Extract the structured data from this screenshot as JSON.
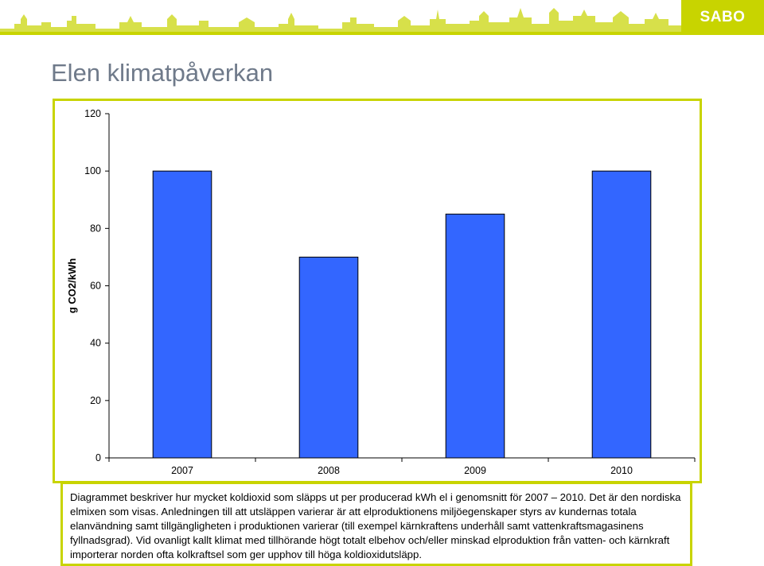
{
  "brand": {
    "logo_text": "SABO",
    "accent_color": "#c8d400"
  },
  "slide": {
    "title": "Elen klimatpåverkan"
  },
  "chart_data": {
    "type": "bar",
    "title": "",
    "xlabel": "",
    "ylabel": "g CO2/kWh",
    "categories": [
      "2007",
      "2008",
      "2009",
      "2010"
    ],
    "values": [
      100,
      70,
      85,
      100
    ],
    "ylim": [
      0,
      120
    ],
    "yticks": [
      0,
      20,
      40,
      60,
      80,
      100,
      120
    ],
    "bar_color": "#3366ff",
    "grid": false,
    "legend": "none"
  },
  "caption": {
    "text": "Diagrammet beskriver hur mycket koldioxid som släpps ut per producerad kWh el i genomsnitt för 2007 – 2010. Det är den nordiska elmixen som visas. Anledningen till att utsläppen varierar är att elproduktionens miljöegenskaper styrs av kundernas totala elanvändning samt tillgängligheten i produktionen varierar (till exempel kärnkraftens underhåll samt vattenkraftsmagasinens fyllnadsgrad). Vid ovanligt kallt klimat med tillhörande högt totalt elbehov och/eller minskad elproduktion från vatten- och kärnkraft importerar norden ofta kolkraftsel som ger upphov till höga koldioxidutsläpp."
  }
}
